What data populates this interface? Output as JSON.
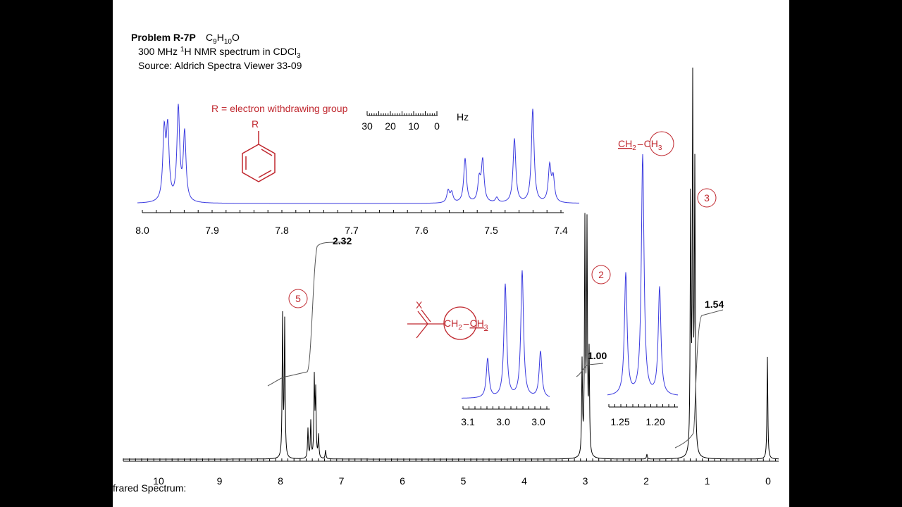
{
  "header": {
    "problem": "Problem R-7P",
    "formula": [
      "C",
      "9",
      "H",
      "10",
      "O"
    ],
    "line2": [
      "300 MHz ",
      "1",
      "H NMR spectrum in CDCl",
      "3"
    ],
    "line3": "Source: Aldrich Spectra Viewer 33-09"
  },
  "top_inset": {
    "r_label": "R = electron withdrawing group",
    "r": "R",
    "scale_ticks": [
      "30",
      "20",
      "10",
      "0"
    ],
    "scale_unit": "Hz",
    "axis_labels": [
      "8.0",
      "7.9",
      "7.8",
      "7.7",
      "7.6",
      "7.5",
      "7.4"
    ]
  },
  "ethyl_label": [
    "CH",
    "2",
    "CH",
    "3"
  ],
  "ketone_label": {
    "x": "X",
    "group": [
      "CH",
      "2",
      "CH",
      "3"
    ]
  },
  "inset_a": {
    "axis_labels": [
      "3.1",
      "3.0",
      "3.0"
    ]
  },
  "inset_b": {
    "axis_labels": [
      "1.25",
      "1.20"
    ]
  },
  "signals": [
    "5",
    "2",
    "3"
  ],
  "integrals": [
    "2.32",
    "1.00",
    "1.54"
  ],
  "main_axis": {
    "labels": [
      "10",
      "9",
      "8",
      "7",
      "6",
      "5",
      "4",
      "3",
      "2",
      "1",
      "0"
    ]
  },
  "footer": "frared Spectrum:"
}
